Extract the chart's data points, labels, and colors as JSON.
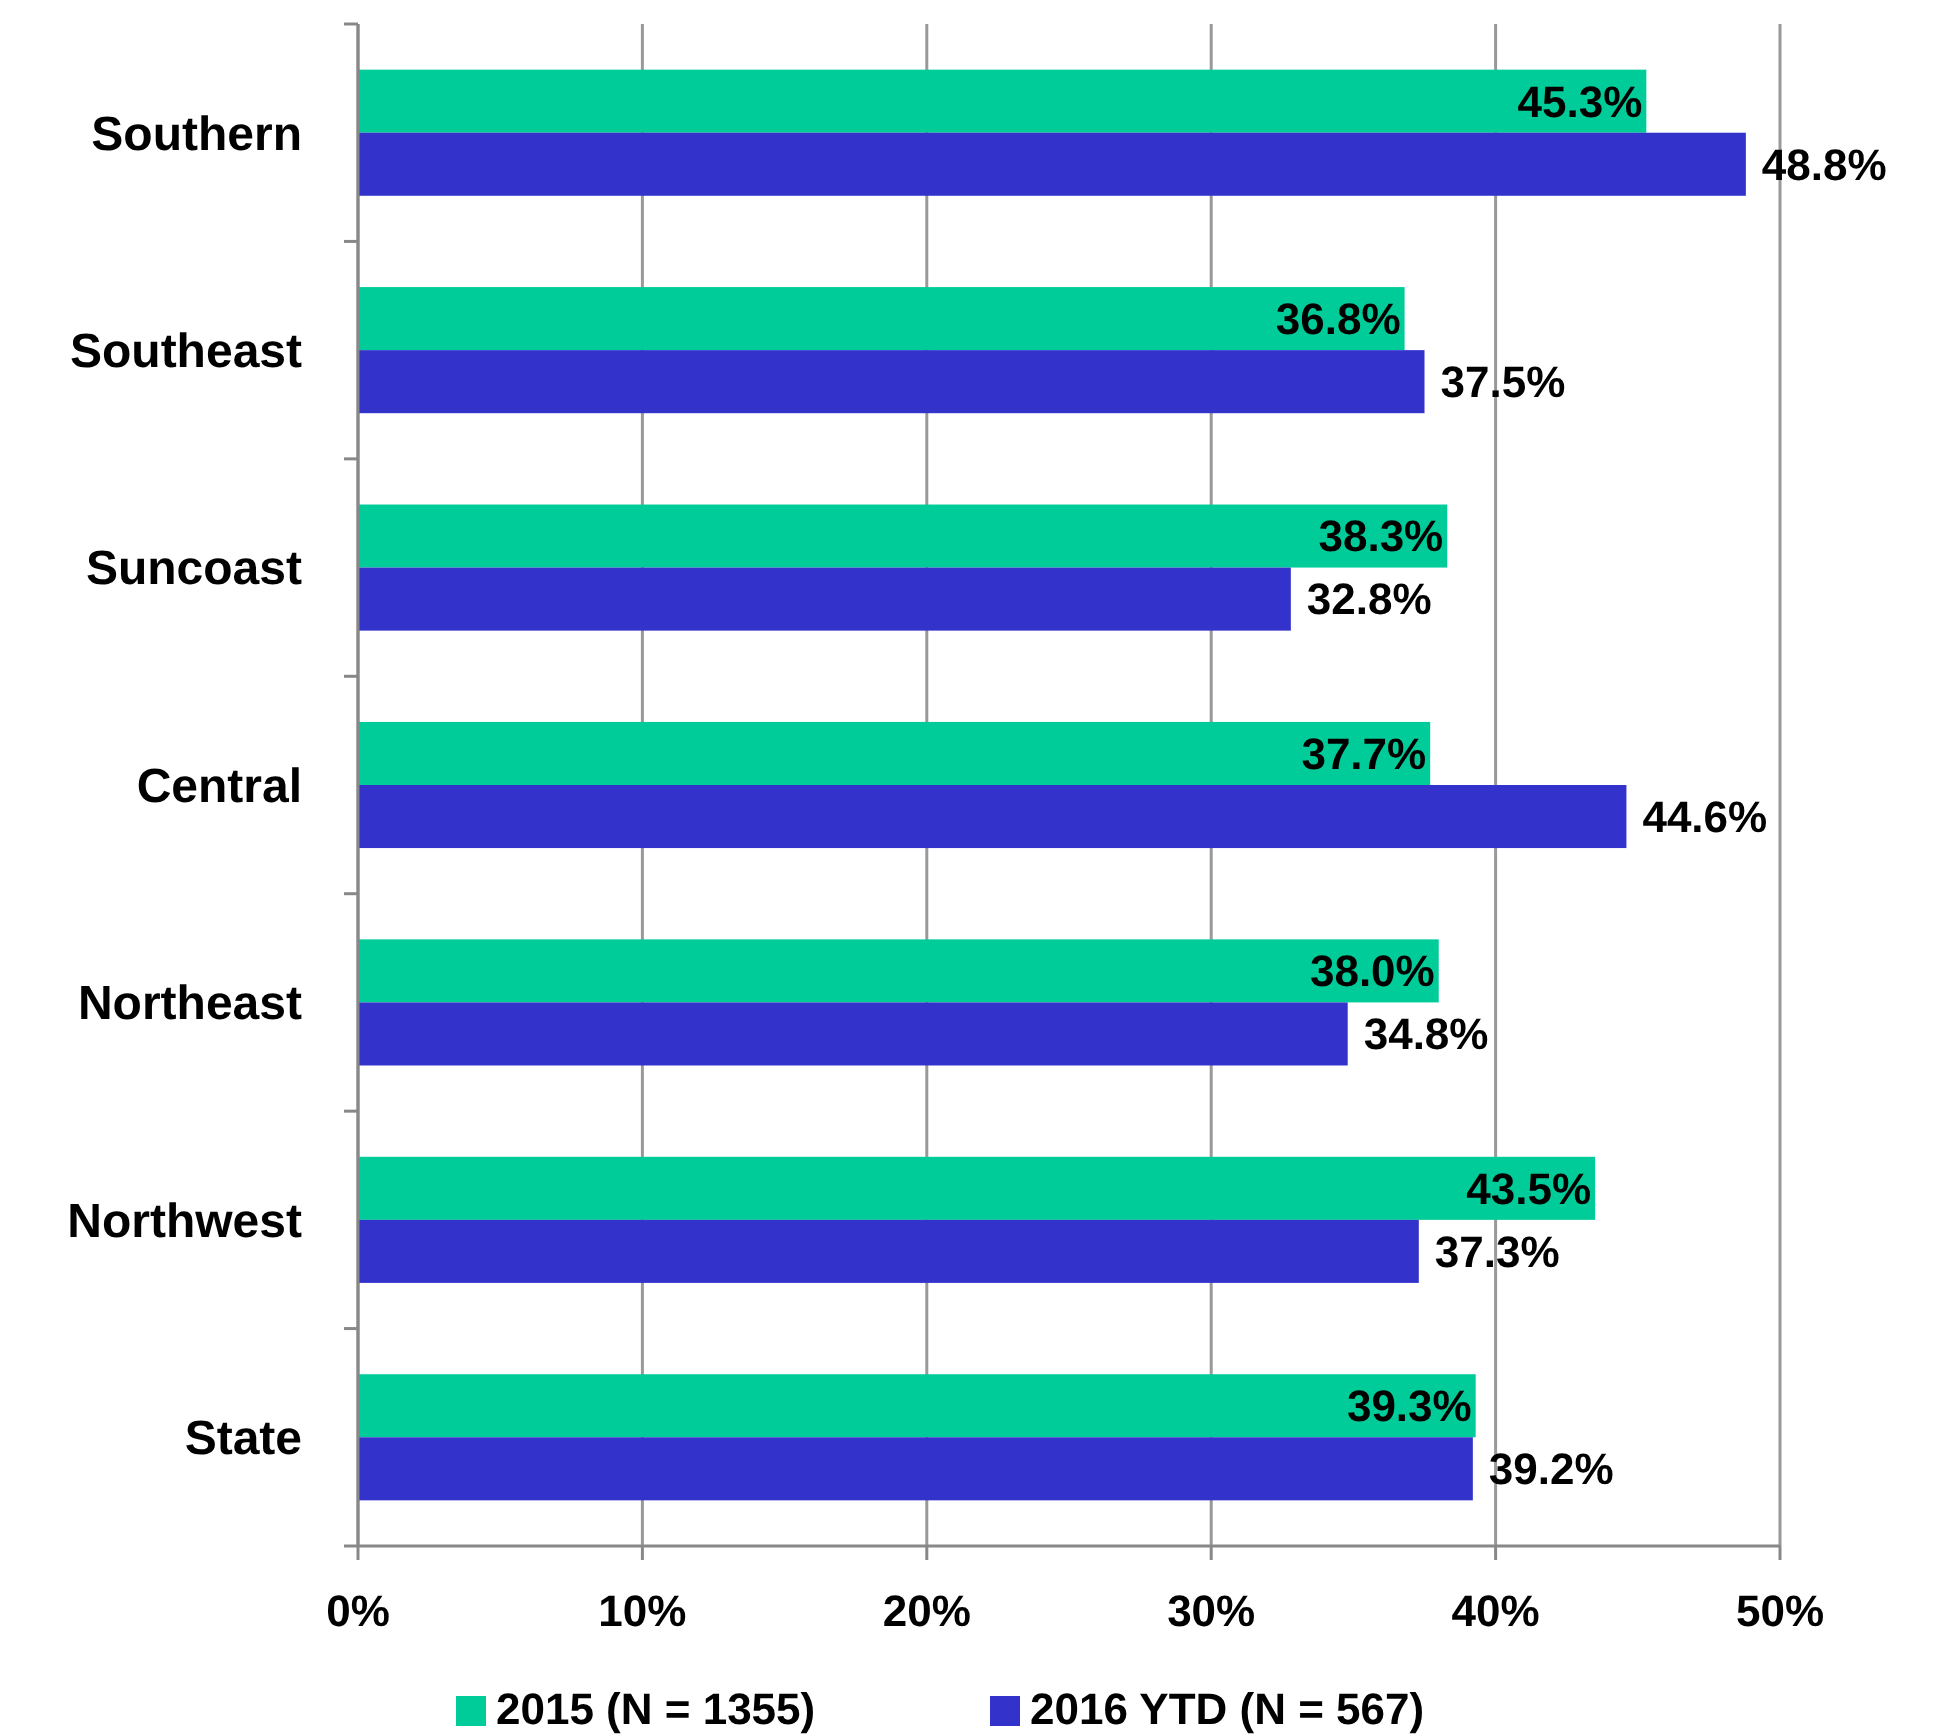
{
  "chart_data": {
    "type": "bar",
    "orientation": "horizontal",
    "categories": [
      "Southern",
      "Southeast",
      "Suncoast",
      "Central",
      "Northeast",
      "Northwest",
      "State"
    ],
    "series": [
      {
        "name": "2015 (N = 1355)",
        "color": "#00cc99",
        "values": [
          45.3,
          36.8,
          38.3,
          37.7,
          38.0,
          43.5,
          39.3
        ],
        "value_labels": [
          "45.3%",
          "36.8%",
          "38.3%",
          "37.7%",
          "38.0%",
          "43.5%",
          "39.3%"
        ]
      },
      {
        "name": "2016 YTD (N = 567)",
        "color": "#3333cc",
        "values": [
          48.8,
          37.5,
          32.8,
          44.6,
          34.8,
          37.3,
          39.2
        ],
        "value_labels": [
          "48.8%",
          "37.5%",
          "32.8%",
          "44.6%",
          "34.8%",
          "37.3%",
          "39.2%"
        ]
      }
    ],
    "xlim": [
      0,
      50
    ],
    "xticks": [
      {
        "value": 0,
        "label": "0%"
      },
      {
        "value": 10,
        "label": "10%"
      },
      {
        "value": 20,
        "label": "20%"
      },
      {
        "value": 30,
        "label": "30%"
      },
      {
        "value": 40,
        "label": "40%"
      },
      {
        "value": 50,
        "label": "50%"
      }
    ],
    "grid": "x",
    "legend": "bottom"
  }
}
